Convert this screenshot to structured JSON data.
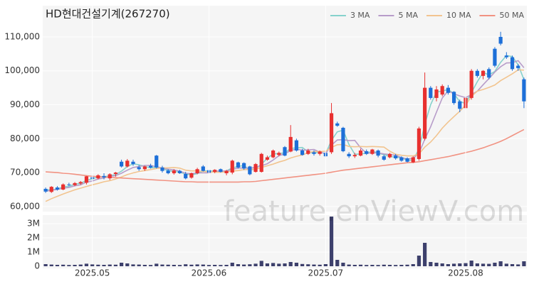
{
  "chart_data": [
    {
      "type": "candlestick",
      "title": "HD현대건설기계(267270)",
      "legend": "top-right",
      "grid": true,
      "up_color": "#e8302f",
      "down_color": "#1d6fd8",
      "open": [
        65200,
        64300,
        65600,
        65000,
        66500,
        66300,
        66800,
        67000,
        68600,
        68300,
        69000,
        68300,
        69600,
        73200,
        71800,
        73200,
        71600,
        71000,
        72000,
        75000,
        71500,
        70600,
        69800,
        70500,
        69600,
        68500,
        69800,
        71800,
        70700,
        70200,
        71000,
        69800,
        70000,
        73000,
        72800,
        71800,
        70200,
        70200,
        73800,
        74500,
        75200,
        77500,
        76200,
        79500,
        76500,
        75500,
        76000,
        75500,
        75800,
        76000,
        84500,
        83200,
        75500,
        74800,
        75000,
        76300,
        75500,
        76500,
        74800,
        74500,
        75000,
        74500,
        74200,
        73000,
        74000,
        80000,
        95000,
        92000,
        93000,
        95000,
        93800,
        91000,
        89000,
        92000,
        100000,
        98500,
        100500,
        106500,
        110000,
        104500,
        104000,
        101500,
        97500
      ],
      "high": [
        65600,
        66000,
        66000,
        66800,
        67000,
        67200,
        67500,
        69000,
        69200,
        69500,
        69800,
        69800,
        70200,
        73800,
        74000,
        73800,
        72200,
        72000,
        72600,
        75200,
        72000,
        71000,
        71000,
        70800,
        70200,
        70000,
        71400,
        72200,
        71000,
        71000,
        71200,
        70800,
        73800,
        73200,
        73000,
        72000,
        72800,
        75800,
        75000,
        76800,
        76200,
        77800,
        84000,
        80000,
        77000,
        77000,
        76500,
        76500,
        76200,
        90500,
        85000,
        83500,
        76000,
        75800,
        77000,
        76800,
        77000,
        76800,
        75200,
        75800,
        75500,
        74800,
        74500,
        74800,
        83500,
        99500,
        95500,
        95500,
        96000,
        95800,
        94000,
        91500,
        93000,
        100500,
        100500,
        100200,
        101000,
        107000,
        111500,
        105500,
        104500,
        102000,
        98000
      ],
      "low": [
        64000,
        64000,
        64700,
        64800,
        66000,
        66000,
        66400,
        66500,
        67800,
        68000,
        68000,
        67800,
        68800,
        71500,
        71500,
        72000,
        70500,
        70500,
        71200,
        71200,
        70000,
        69500,
        69400,
        69600,
        68000,
        68200,
        69500,
        70300,
        69800,
        69800,
        70000,
        69200,
        69500,
        71200,
        70800,
        69200,
        70000,
        70000,
        73500,
        74200,
        74800,
        74800,
        76000,
        76200,
        75000,
        75200,
        75000,
        75000,
        74500,
        75500,
        83500,
        76000,
        74300,
        74300,
        74800,
        75200,
        75200,
        74500,
        73500,
        74200,
        73800,
        73200,
        73000,
        72800,
        73500,
        79500,
        91500,
        91000,
        92500,
        93000,
        90000,
        87800,
        88500,
        91500,
        98000,
        97500,
        97500,
        101000,
        107500,
        103500,
        100000,
        100000,
        89000
      ],
      "close": [
        64400,
        65800,
        65000,
        66500,
        66300,
        66900,
        67200,
        68900,
        68200,
        69200,
        68600,
        69500,
        70000,
        71800,
        73500,
        72500,
        71000,
        71800,
        71500,
        71500,
        70500,
        69800,
        70600,
        69800,
        68300,
        69800,
        71000,
        70500,
        70000,
        70800,
        70200,
        70500,
        73500,
        71500,
        71200,
        69500,
        72500,
        75500,
        74500,
        76500,
        75800,
        75000,
        80500,
        76500,
        75200,
        76500,
        75500,
        76200,
        74800,
        87500,
        83800,
        76300,
        74800,
        75200,
        76500,
        75500,
        76800,
        75000,
        73800,
        75500,
        74200,
        73500,
        73200,
        74500,
        83000,
        95000,
        92000,
        94500,
        95500,
        93500,
        90500,
        88800,
        92000,
        100000,
        98500,
        100000,
        98000,
        101500,
        108000,
        104000,
        100500,
        100800,
        91000
      ],
      "series": [
        {
          "name": "3 MA",
          "color": "#86d2cc",
          "values": [
            64800,
            65000,
            65100,
            65800,
            65900,
            66600,
            66800,
            67700,
            68100,
            68800,
            68700,
            69100,
            69400,
            70400,
            71800,
            72600,
            72300,
            71800,
            71400,
            71600,
            71200,
            70600,
            70300,
            70100,
            69600,
            69300,
            69700,
            70400,
            70500,
            70400,
            70300,
            70500,
            71400,
            71800,
            72100,
            70700,
            71100,
            72500,
            74200,
            75500,
            75600,
            75800,
            77100,
            77300,
            77400,
            76100,
            75700,
            76100,
            75500,
            79500,
            82000,
            82500,
            78300,
            75400,
            75500,
            75700,
            76300,
            75800,
            75200,
            74800,
            74500,
            74400,
            73600,
            73700,
            76900,
            84200,
            90000,
            93800,
            94000,
            94500,
            93200,
            90900,
            90400,
            93600,
            96800,
            99500,
            98800,
            99800,
            102500,
            104500,
            104200,
            101800,
            97400
          ]
        },
        {
          "name": "5 MA",
          "color": "#b79cc9",
          "values": [
            64500,
            64800,
            65000,
            65400,
            65600,
            66100,
            66400,
            67200,
            67500,
            68100,
            68400,
            68900,
            69100,
            69800,
            70700,
            71500,
            71800,
            72100,
            72100,
            71700,
            71300,
            71000,
            70800,
            70400,
            69800,
            69700,
            69900,
            69900,
            69900,
            70400,
            70500,
            70400,
            71000,
            71300,
            71400,
            71200,
            71600,
            72000,
            72600,
            73700,
            75000,
            75500,
            76500,
            76900,
            76600,
            76700,
            76800,
            76000,
            75600,
            78100,
            79600,
            79700,
            79400,
            79500,
            77300,
            75700,
            75800,
            75800,
            75500,
            75300,
            75100,
            74400,
            74000,
            74200,
            75700,
            79800,
            83500,
            87800,
            92000,
            94100,
            93200,
            92600,
            92100,
            93000,
            94000,
            95900,
            97700,
            99600,
            101200,
            102300,
            102400,
            103000,
            100900
          ]
        },
        {
          "name": "10 MA",
          "color": "#f2c48f",
          "values": [
            61500,
            62300,
            63000,
            63700,
            64300,
            64900,
            65400,
            65900,
            66400,
            66800,
            67300,
            67600,
            68100,
            68700,
            69400,
            69900,
            70300,
            70600,
            70900,
            71200,
            71400,
            71400,
            71500,
            71300,
            70700,
            70500,
            70500,
            70300,
            70200,
            70100,
            70100,
            70200,
            70400,
            70600,
            70900,
            70900,
            71000,
            71500,
            72000,
            72500,
            73100,
            73600,
            74300,
            74800,
            75200,
            75900,
            76200,
            76200,
            76300,
            77400,
            78200,
            78300,
            77700,
            77600,
            77700,
            77600,
            77700,
            77600,
            77500,
            76300,
            75400,
            75100,
            74900,
            74900,
            75500,
            77500,
            79000,
            80900,
            83100,
            84900,
            86500,
            88100,
            89900,
            92500,
            94000,
            94500,
            95100,
            95800,
            97100,
            98100,
            99100,
            100300,
            100200
          ]
        },
        {
          "name": "50 MA",
          "color": "#f19282",
          "values": [
            70200,
            70100,
            70000,
            69800,
            69700,
            69500,
            69300,
            69100,
            68900,
            68800,
            68700,
            68600,
            68500,
            68400,
            68300,
            68200,
            68100,
            68000,
            67900,
            67800,
            67700,
            67600,
            67500,
            67400,
            67300,
            67300,
            67200,
            67200,
            67200,
            67200,
            67200,
            67200,
            67200,
            67200,
            67300,
            67300,
            67400,
            67600,
            67800,
            68000,
            68200,
            68400,
            68600,
            68800,
            69000,
            69200,
            69400,
            69600,
            69800,
            70100,
            70400,
            70700,
            70900,
            71100,
            71300,
            71500,
            71700,
            71900,
            72100,
            72300,
            72500,
            72700,
            72900,
            73000,
            73200,
            73500,
            73800,
            74100,
            74400,
            74700,
            75100,
            75500,
            75900,
            76300,
            76800,
            77300,
            77900,
            78500,
            79200,
            80000,
            80900,
            81800,
            82700
          ]
        }
      ],
      "ylim": [
        58500,
        119200
      ],
      "yticks": [
        {
          "value": 60000,
          "label": "60,000"
        },
        {
          "value": 70000,
          "label": "70,000"
        },
        {
          "value": 80000,
          "label": "80,000"
        },
        {
          "value": 90000,
          "label": "90,000"
        },
        {
          "value": 100000,
          "label": "100,000"
        },
        {
          "value": 110000,
          "label": "110,000"
        }
      ]
    },
    {
      "type": "bar",
      "color": "#3d406c",
      "grid": true,
      "categories": [
        null,
        null,
        null,
        null,
        null,
        null,
        null,
        null,
        "2025.05",
        null,
        null,
        null,
        null,
        null,
        null,
        null,
        null,
        null,
        null,
        null,
        null,
        null,
        null,
        null,
        null,
        null,
        null,
        null,
        "2025.06",
        null,
        null,
        null,
        null,
        null,
        null,
        null,
        null,
        null,
        null,
        null,
        null,
        null,
        null,
        null,
        null,
        null,
        null,
        null,
        "2025.07",
        null,
        null,
        null,
        null,
        null,
        null,
        null,
        null,
        null,
        null,
        null,
        null,
        null,
        null,
        null,
        null,
        null,
        null,
        null,
        null,
        null,
        null,
        null,
        "2025.08",
        null,
        null,
        null,
        null,
        null,
        null,
        null,
        null,
        null,
        null
      ],
      "values": [
        150000,
        120000,
        100000,
        110000,
        90000,
        100000,
        120000,
        180000,
        130000,
        110000,
        100000,
        120000,
        110000,
        250000,
        200000,
        130000,
        120000,
        100000,
        90000,
        180000,
        120000,
        110000,
        100000,
        90000,
        140000,
        110000,
        130000,
        120000,
        90000,
        100000,
        90000,
        100000,
        250000,
        150000,
        120000,
        140000,
        180000,
        380000,
        200000,
        230000,
        180000,
        200000,
        300000,
        250000,
        160000,
        140000,
        120000,
        110000,
        150000,
        3500000,
        450000,
        250000,
        120000,
        100000,
        110000,
        90000,
        100000,
        90000,
        110000,
        100000,
        90000,
        100000,
        110000,
        150000,
        750000,
        1650000,
        300000,
        250000,
        200000,
        150000,
        180000,
        200000,
        220000,
        400000,
        200000,
        180000,
        170000,
        250000,
        350000,
        180000,
        150000,
        130000,
        350000
      ],
      "ylim": [
        0,
        3600000
      ],
      "yticks": [
        0,
        {
          "value": 1000000,
          "label": "1M"
        },
        {
          "value": 2000000,
          "label": "2M"
        },
        {
          "value": 3000000,
          "label": "3M"
        }
      ]
    }
  ],
  "watermark": "feature.enViewV.com"
}
